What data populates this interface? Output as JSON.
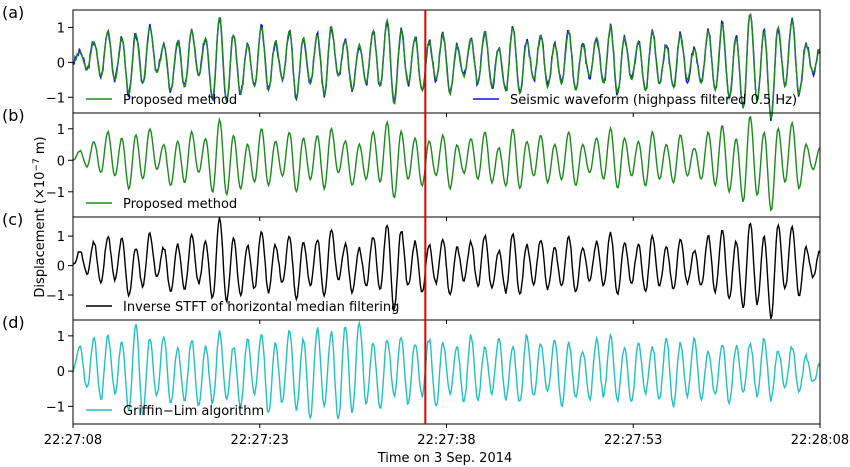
{
  "chart_data": {
    "type": "line",
    "xlabel": "Time on 3 Sep. 2014",
    "ylabel_prefix": "Displacement (×10",
    "ylabel_exp": "−7",
    "ylabel_suffix": " m)",
    "x_range_seconds": [
      0,
      60
    ],
    "x_ticks": [
      {
        "t": 0,
        "label": "22:27:08"
      },
      {
        "t": 15,
        "label": "22:27:23"
      },
      {
        "t": 30,
        "label": "22:27:38"
      },
      {
        "t": 45,
        "label": "22:27:53"
      },
      {
        "t": 60,
        "label": "22:28:08"
      }
    ],
    "event_marker": {
      "t": 28.3,
      "color": "#e00000"
    },
    "panels": [
      {
        "letter": "(a)",
        "ylim": [
          -1.45,
          1.5
        ],
        "yticks": [
          -1,
          0,
          1
        ],
        "series": [
          {
            "name": "Seismic waveform (highpass filtered 0.5 Hz)",
            "color": "#1111dd",
            "legend": "right"
          },
          {
            "name": "Proposed method",
            "color": "#1a8a1a",
            "legend": "left"
          }
        ]
      },
      {
        "letter": "(b)",
        "ylim": [
          -1.8,
          1.5
        ],
        "yticks": [
          -1,
          0,
          1
        ],
        "series": [
          {
            "name": "Proposed method",
            "color": "#1a8a1a",
            "legend": "left"
          }
        ]
      },
      {
        "letter": "(c)",
        "ylim": [
          -1.85,
          1.65
        ],
        "yticks": [
          -1,
          0,
          1
        ],
        "series": [
          {
            "name": "Inverse STFT of horizontal median filtering",
            "color": "#000000",
            "legend": "left"
          }
        ]
      },
      {
        "letter": "(d)",
        "ylim": [
          -1.5,
          1.45
        ],
        "yticks": [
          -1,
          0,
          1
        ],
        "series": [
          {
            "name": "Griffin−Lim algorithm",
            "color": "#22c0c0",
            "legend": "left"
          }
        ]
      }
    ],
    "waveform_samples_note_free": true,
    "proposed": [
      0,
      0.3,
      -0.2,
      0.6,
      -0.4,
      0.9,
      -0.5,
      0.7,
      -0.9,
      0.8,
      -0.6,
      1.0,
      -0.3,
      0.5,
      -0.8,
      0.6,
      -0.7,
      0.9,
      -0.4,
      0.7,
      -1.0,
      1.3,
      -1.1,
      0.8,
      -0.9,
      0.5,
      -0.7,
      1.0,
      -0.8,
      0.6,
      -0.5,
      0.9,
      -1.0,
      0.7,
      -0.6,
      0.8,
      -0.9,
      1.0,
      -0.4,
      0.6,
      -0.8,
      0.5,
      -0.6,
      0.9,
      -0.7,
      1.2,
      -1.2,
      0.9,
      -0.6,
      0.7,
      -0.8,
      0.6,
      -0.5,
      0.8,
      -0.9,
      0.5,
      -0.4,
      0.7,
      -0.6,
      0.9,
      -0.7,
      0.4,
      -0.8,
      1.0,
      -0.9,
      0.6,
      -0.5,
      0.8,
      -0.7,
      0.5,
      -0.6,
      0.9,
      -0.8,
      0.5,
      -0.4,
      0.7,
      -0.6,
      1.0,
      -0.9,
      0.7,
      -0.5,
      0.6,
      -0.8,
      0.9,
      -0.6,
      0.5,
      -0.7,
      0.8,
      -0.5,
      0.4,
      -0.6,
      0.9,
      -0.8,
      1.1,
      -1.0,
      0.7,
      -1.3,
      1.4,
      -1.1,
      0.9,
      -1.6,
      1.0,
      -0.7,
      1.2,
      -0.9,
      0.5,
      -0.3,
      0.4
    ],
    "median": [
      0,
      0.5,
      -0.3,
      0.8,
      -0.6,
      1.0,
      -0.5,
      0.9,
      -1.0,
      0.6,
      -0.7,
      1.1,
      -0.4,
      0.6,
      -0.9,
      0.7,
      -0.8,
      1.0,
      -0.6,
      0.8,
      -1.1,
      1.6,
      -1.2,
      0.9,
      -1.0,
      0.7,
      -0.8,
      1.2,
      -0.9,
      0.7,
      -0.6,
      1.0,
      -1.1,
      0.8,
      -0.7,
      0.9,
      -1.0,
      1.2,
      -0.5,
      0.7,
      -0.9,
      0.6,
      -0.7,
      1.0,
      -0.8,
      1.4,
      -1.5,
      1.2,
      -0.7,
      0.8,
      -0.9,
      0.7,
      -0.6,
      0.9,
      -1.0,
      0.6,
      -0.5,
      0.8,
      -0.7,
      1.0,
      -0.8,
      0.5,
      -0.9,
      1.1,
      -1.0,
      0.7,
      -0.6,
      0.9,
      -0.8,
      0.6,
      -0.7,
      1.0,
      -0.9,
      0.6,
      -0.5,
      0.8,
      -0.7,
      1.1,
      -1.0,
      0.8,
      -0.6,
      0.7,
      -0.9,
      1.0,
      -0.7,
      0.6,
      -0.8,
      0.9,
      -0.6,
      0.5,
      -0.7,
      1.0,
      -0.9,
      1.2,
      -1.1,
      0.8,
      -1.4,
      1.5,
      -1.3,
      1.0,
      -1.8,
      1.4,
      -0.8,
      1.3,
      -1.0,
      0.6,
      -0.4,
      0.5
    ],
    "griffin": [
      0,
      0.7,
      -0.5,
      0.9,
      -0.8,
      1.0,
      -0.6,
      0.8,
      -1.1,
      1.3,
      -1.2,
      0.9,
      -0.7,
      1.0,
      -0.9,
      0.6,
      -0.8,
      0.9,
      -1.0,
      0.7,
      -0.9,
      1.1,
      -0.8,
      0.7,
      -1.0,
      0.9,
      -0.6,
      1.1,
      -1.2,
      0.8,
      -0.9,
      1.2,
      -1.1,
      0.9,
      -1.3,
      1.2,
      -1.0,
      1.1,
      -1.4,
      1.3,
      -1.2,
      1.4,
      -0.9,
      0.8,
      -1.1,
      0.9,
      -0.7,
      1.0,
      -0.9,
      0.8,
      -0.7,
      0.9,
      -1.0,
      0.8,
      -0.6,
      0.7,
      -0.9,
      1.0,
      -0.8,
      0.7,
      -0.6,
      0.9,
      -0.8,
      0.7,
      -0.9,
      1.0,
      -0.7,
      0.8,
      -0.6,
      0.9,
      -1.0,
      0.8,
      -0.7,
      0.6,
      -0.8,
      0.9,
      -0.7,
      1.0,
      -0.8,
      0.7,
      -0.9,
      0.8,
      -0.6,
      0.7,
      -0.8,
      0.9,
      -1.0,
      0.8,
      -0.7,
      0.9,
      -0.8,
      0.6,
      -0.7,
      0.8,
      -0.9,
      0.7,
      -0.6,
      0.8,
      -0.7,
      0.9,
      -0.8,
      0.6,
      -0.5,
      0.7,
      -0.6,
      0.4,
      -0.3,
      0.2
    ]
  }
}
